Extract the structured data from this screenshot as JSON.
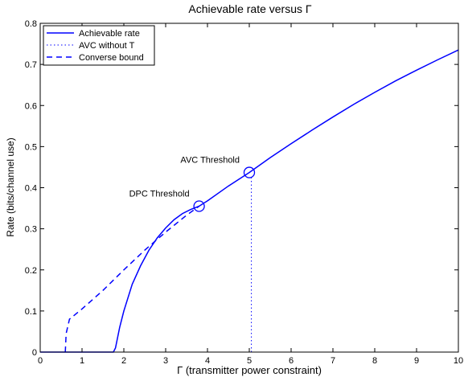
{
  "chart_data": {
    "type": "line",
    "title": "Achievable rate versus Γ",
    "xlabel": "Γ (transmitter power constraint)",
    "ylabel": "Rate (bits/channel use)",
    "xlim": [
      0,
      10
    ],
    "ylim": [
      0,
      0.8
    ],
    "xticks": [
      0,
      1,
      2,
      3,
      4,
      5,
      6,
      7,
      8,
      9,
      10
    ],
    "yticks": [
      0,
      0.1,
      0.2,
      0.3,
      0.4,
      0.5,
      0.6,
      0.7,
      0.8
    ],
    "grid": false,
    "legend_position": "top-left",
    "line_color": "#0000ff",
    "series": [
      {
        "name": "Achievable rate",
        "style": "solid",
        "x": [
          0,
          1.75,
          1.8,
          1.9,
          2.0,
          2.2,
          2.4,
          2.6,
          2.8,
          3.0,
          3.2,
          3.4,
          3.6,
          3.8,
          4.0,
          4.5,
          5.0,
          5.5,
          6.0,
          6.5,
          7.0,
          7.5,
          8.0,
          8.5,
          9.0,
          9.5,
          10.0
        ],
        "y": [
          0,
          0,
          0.01,
          0.06,
          0.1,
          0.165,
          0.21,
          0.248,
          0.278,
          0.302,
          0.322,
          0.337,
          0.347,
          0.355,
          0.368,
          0.404,
          0.437,
          0.473,
          0.507,
          0.54,
          0.572,
          0.603,
          0.632,
          0.66,
          0.686,
          0.711,
          0.735
        ]
      },
      {
        "name": "AVC without T",
        "style": "dotted",
        "x": [
          5.05,
          5.05
        ],
        "y": [
          0,
          0.43
        ]
      },
      {
        "name": "Converse bound",
        "style": "dashed",
        "x": [
          0.6,
          0.62,
          0.7,
          1.0,
          1.5,
          2.0,
          2.5,
          3.0,
          3.5,
          3.8
        ],
        "y": [
          0,
          0.045,
          0.08,
          0.105,
          0.15,
          0.2,
          0.248,
          0.292,
          0.333,
          0.355
        ]
      }
    ],
    "markers": [
      {
        "x": 3.8,
        "y": 0.355,
        "label": "DPC Threshold"
      },
      {
        "x": 5.0,
        "y": 0.437,
        "label": "AVC Threshold"
      }
    ]
  }
}
